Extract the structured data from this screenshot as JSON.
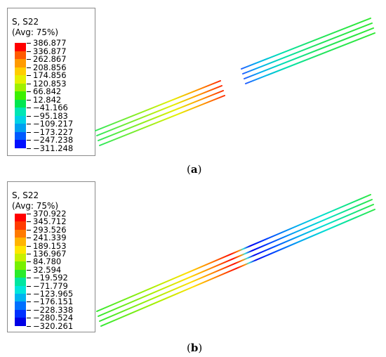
{
  "panels": [
    {
      "id": "a",
      "caption": {
        "open": "(",
        "label": "a",
        "close": ")"
      },
      "legend": {
        "title": "S, S22",
        "subtitle": "(Avg: 75%)",
        "values": [
          "386.877",
          "336.877",
          "262.867",
          "208.856",
          "174.856",
          "120.853",
          "66.842",
          "12.842",
          "−41.166",
          "−95.183",
          "−109.217",
          "−173.227",
          "−247.238",
          "−311.248"
        ],
        "colors": [
          "#ff0000",
          "#ff5a00",
          "#ff9a00",
          "#ffcd00",
          "#e6f000",
          "#a0f000",
          "#3cf000",
          "#00e650",
          "#00e6b4",
          "#00d2e6",
          "#00a0f0",
          "#005aff",
          "#0010ff"
        ]
      }
    },
    {
      "id": "b",
      "caption": {
        "open": "(",
        "label": "b",
        "close": ")"
      },
      "legend": {
        "title": "S, S22",
        "subtitle": "(Avg: 75%)",
        "values": [
          "370.922",
          "345.712",
          "293.526",
          "241.339",
          "189.153",
          "136.967",
          "84.780",
          "32.594",
          "−19.592",
          "−71.779",
          "−123.965",
          "−176.151",
          "−228.338",
          "−280.524",
          "−320.261"
        ],
        "colors": [
          "#ff0000",
          "#ff3a00",
          "#ff7a00",
          "#ffb400",
          "#ffe600",
          "#c8f000",
          "#78f000",
          "#2aeb2a",
          "#00e6a0",
          "#00e6dc",
          "#00b4f0",
          "#0070ff",
          "#0030ff",
          "#0000e6"
        ]
      }
    }
  ]
}
